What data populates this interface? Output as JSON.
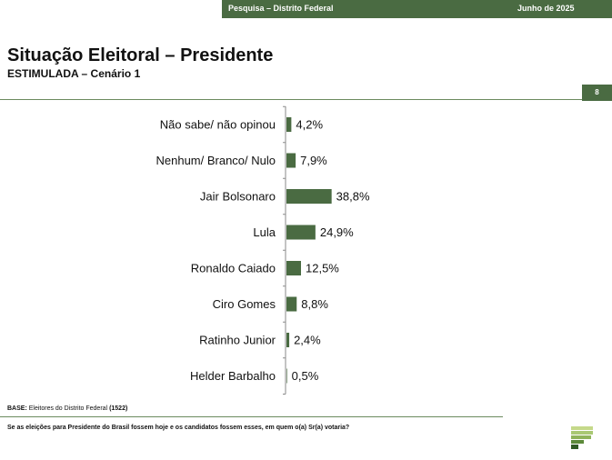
{
  "header": {
    "left_text": "Pesquisa – Distrito Federal",
    "right_text": "Junho de 2025",
    "color": "#4a6b42"
  },
  "title": "Situação Eleitoral – Presidente",
  "subtitle": "ESTIMULADA – Cenário 1",
  "page_number": "8",
  "chart_data": {
    "type": "bar",
    "orientation": "horizontal",
    "categories": [
      "Não sabe/ não opinou",
      "Nenhum/ Branco/ Nulo",
      "Jair Bolsonaro",
      "Lula",
      "Ronaldo Caiado",
      "Ciro Gomes",
      "Ratinho Junior",
      "Helder Barbalho"
    ],
    "values": [
      4.2,
      7.9,
      38.8,
      24.9,
      12.5,
      8.8,
      2.4,
      0.5
    ],
    "labels": [
      "4,2%",
      "7,9%",
      "38,8%",
      "24,9%",
      "12,5%",
      "8,8%",
      "2,4%",
      "0,5%"
    ],
    "bar_color": "#4a6b42",
    "grid": false
  },
  "footer": {
    "base_label": "BASE:",
    "base_text": "Eleitores do Distrito Federal",
    "base_count": "(1522)",
    "question": "Se as eleições para Presidente do Brasil fossem hoje e os candidatos fossem esses, em quem o(a) Sr(a) votaria?"
  },
  "logo": {
    "icon": "paraná-pesquisas-logo",
    "colors": [
      "#c5d98a",
      "#8fb35a",
      "#5c8a3a",
      "#2f5a24"
    ]
  }
}
